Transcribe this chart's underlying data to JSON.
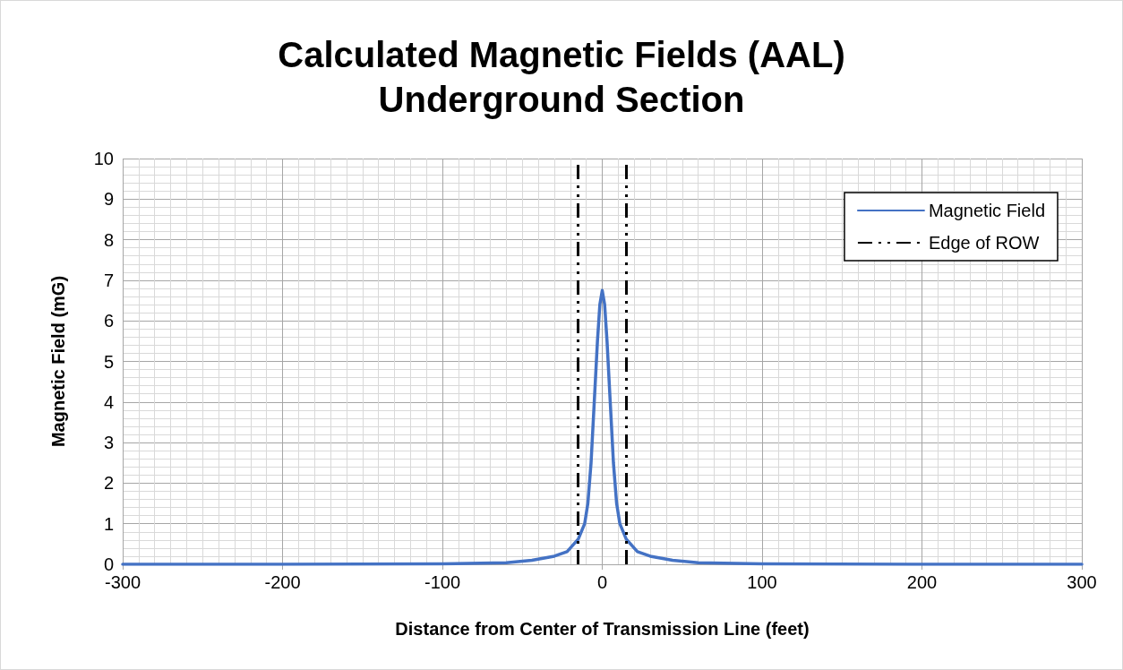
{
  "chart_data": {
    "type": "line",
    "title": "Calculated Magnetic Fields (AAL)\nUnderground Section",
    "xlabel": "Distance from Center of Transmission Line (feet)",
    "ylabel": "Magnetic Field (mG)",
    "series": [
      {
        "name": "Magnetic Field",
        "color": "#4472c4",
        "x": [
          -300,
          -200,
          -100,
          -60,
          -44,
          -30,
          -22,
          -15,
          -11,
          -9,
          -7,
          -5,
          -3,
          -1.5,
          0,
          1.5,
          3,
          5,
          7,
          9,
          11,
          15,
          22,
          30,
          44,
          60,
          100,
          200,
          300
        ],
        "values": [
          0,
          0,
          0.01,
          0.04,
          0.1,
          0.2,
          0.31,
          0.62,
          1,
          1.5,
          2.5,
          4,
          5.5,
          6.4,
          6.75,
          6.4,
          5.5,
          4,
          2.5,
          1.5,
          1,
          0.62,
          0.31,
          0.2,
          0.1,
          0.04,
          0.01,
          0,
          0
        ]
      }
    ],
    "ref_lines": [
      {
        "axis": "x",
        "value": -15,
        "label": "Edge of ROW",
        "color": "#000000",
        "line_style": "dashed"
      },
      {
        "axis": "x",
        "value": 15,
        "color": "#000000",
        "line_style": "dashed"
      }
    ],
    "xlim": [
      -300,
      300
    ],
    "xticks": [
      -300,
      -200,
      -100,
      0,
      100,
      200,
      300
    ],
    "ylim": [
      0,
      10
    ],
    "yticks": [
      0,
      1,
      2,
      3,
      4,
      5,
      6,
      7,
      8,
      9,
      10
    ],
    "grid": true,
    "legend": "top right",
    "marker": "none",
    "line_style": "solid"
  }
}
